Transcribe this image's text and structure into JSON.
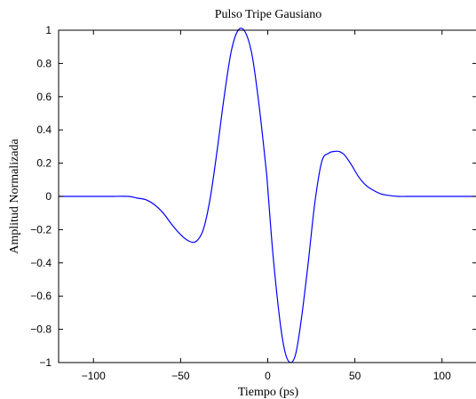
{
  "chart_data": {
    "type": "line",
    "title": "Pulso Tripe Gausiano",
    "xlabel": "Tiempo (ps)",
    "ylabel": "Amplitud Normalizada",
    "xlim": [
      -120,
      120
    ],
    "ylim": [
      -1,
      1
    ],
    "xticks": [
      -100,
      -50,
      0,
      50,
      100
    ],
    "xtick_labels": [
      "−100",
      "−50",
      "0",
      "50",
      "100"
    ],
    "yticks": [
      -1,
      -0.8,
      -0.6,
      -0.4,
      -0.2,
      0,
      0.2,
      0.4,
      0.6,
      0.8,
      1
    ],
    "ytick_labels": [
      "−1",
      "−0.8",
      "−0.6",
      "−0.4",
      "−0.2",
      "0",
      "0.2",
      "0.4",
      "0.6",
      "0.8",
      "1"
    ],
    "grid": false,
    "series": [
      {
        "color": "#0000ff",
        "x": [
          -120,
          -110,
          -100,
          -90,
          -80,
          -75,
          -70,
          -65,
          -60,
          -55,
          -50,
          -45,
          -41,
          -37,
          -33,
          -29,
          -25,
          -21,
          -17,
          -13,
          -9,
          -5,
          -1,
          0,
          3,
          7,
          10,
          13,
          16,
          19,
          23,
          27,
          31,
          35,
          38,
          41,
          44,
          48,
          52,
          56,
          60,
          65,
          70,
          75,
          80,
          90,
          100,
          110,
          120
        ],
        "y": [
          0,
          0,
          0,
          0,
          0,
          -0.01,
          -0.02,
          -0.05,
          -0.1,
          -0.17,
          -0.23,
          -0.27,
          -0.27,
          -0.2,
          -0.01,
          0.28,
          0.6,
          0.87,
          1.0,
          0.99,
          0.85,
          0.55,
          0.17,
          0.05,
          -0.35,
          -0.75,
          -0.94,
          -1.0,
          -0.95,
          -0.76,
          -0.42,
          -0.04,
          0.21,
          0.26,
          0.27,
          0.27,
          0.25,
          0.19,
          0.12,
          0.07,
          0.04,
          0.015,
          0.005,
          0,
          0,
          0,
          0,
          0,
          0
        ]
      }
    ]
  }
}
